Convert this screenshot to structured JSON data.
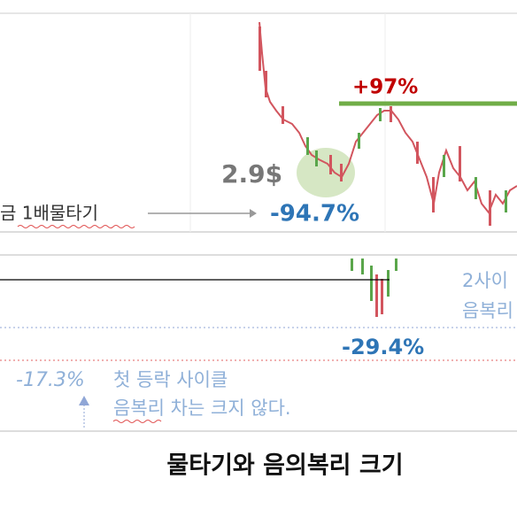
{
  "top_panel": {
    "peak_gain": "+97%",
    "low_price": "2.9$",
    "left_note": "금 1배물타기",
    "drawdown": "-94.7%"
  },
  "bottom_panel": {
    "right_note_line1": "2사이",
    "right_note_line2": "음복리",
    "drawdown": "-29.4%",
    "left_drawdown": "-17.3%",
    "note_line1": "첫 등락 사이클",
    "note_line2": "음복리 차는 크지 않다."
  },
  "caption": "물타기와 음의복리 크기"
}
